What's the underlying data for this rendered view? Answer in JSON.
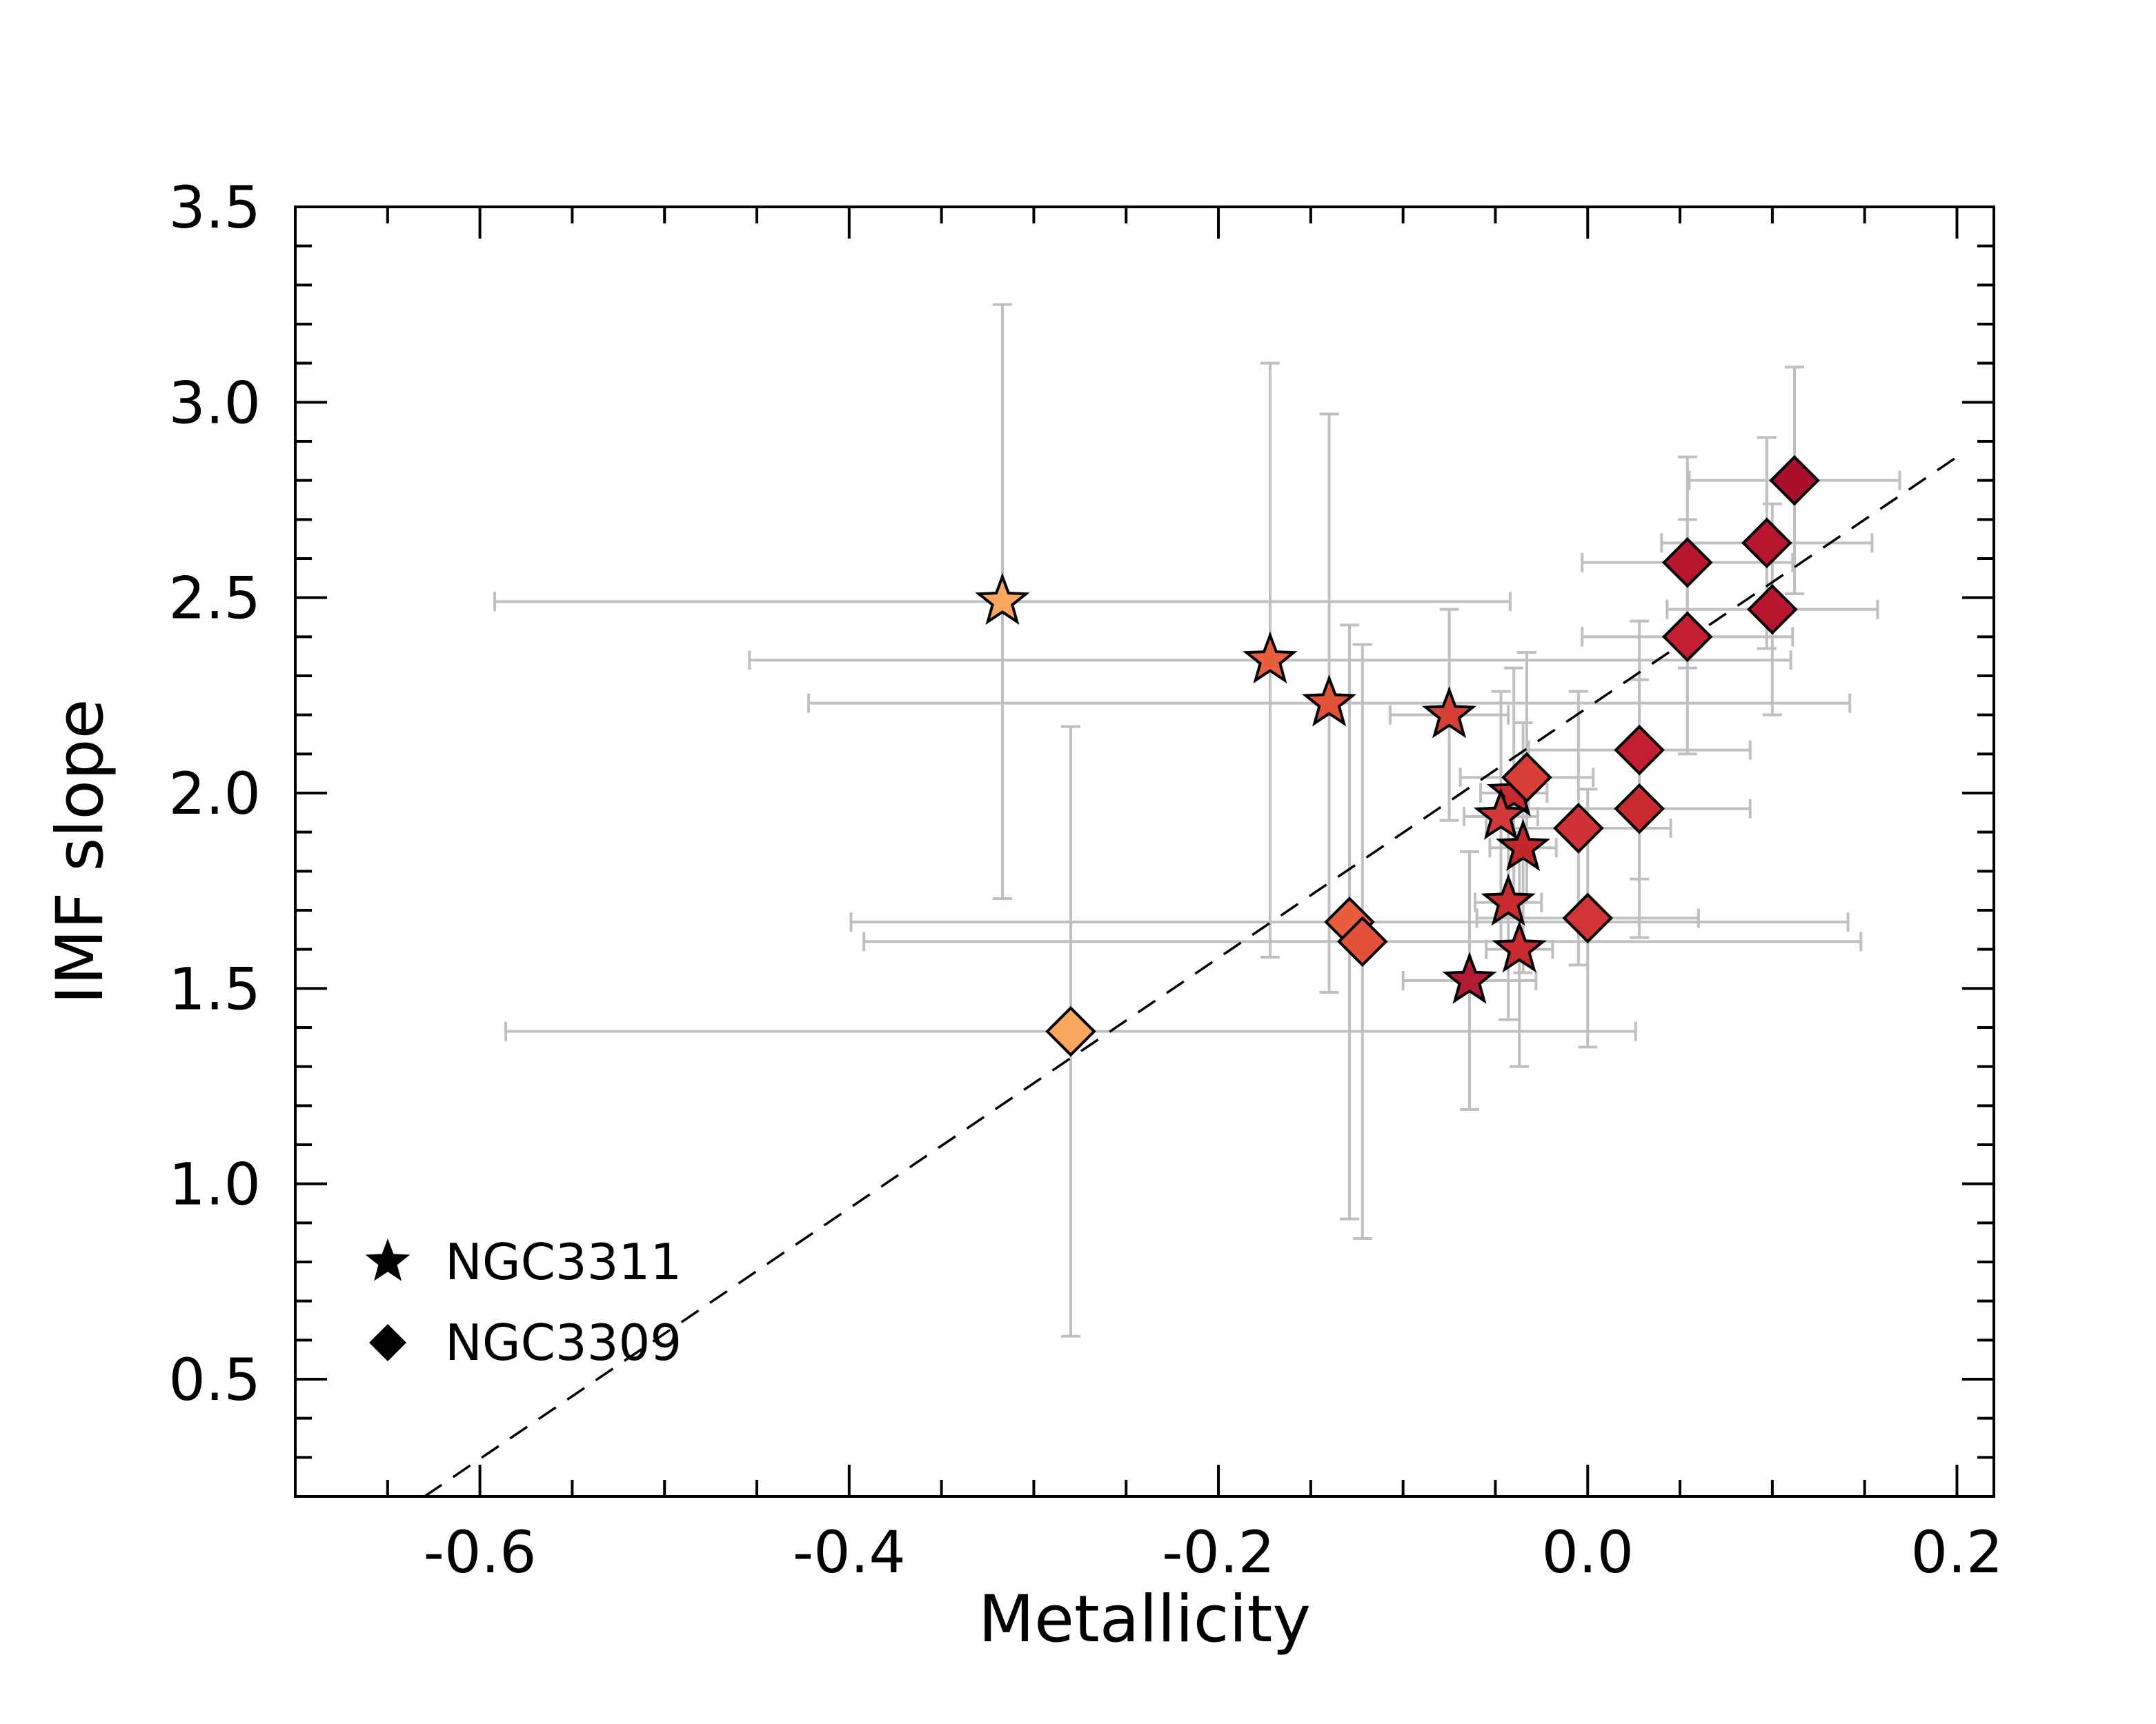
{
  "chart_data": {
    "type": "scatter",
    "title": "",
    "xlabel": "Metallicity",
    "ylabel": "IMF slope",
    "xlim": [
      -0.7,
      0.22
    ],
    "ylim": [
      0.2,
      3.5
    ],
    "xticks": [
      -0.6,
      -0.4,
      -0.2,
      0.0,
      0.2
    ],
    "xtick_labels": [
      "-0.6",
      "-0.4",
      "-0.2",
      "0.0",
      "0.2"
    ],
    "yticks": [
      0.5,
      1.0,
      1.5,
      2.0,
      2.5,
      3.0,
      3.5
    ],
    "ytick_labels": [
      "0.5",
      "1.0",
      "1.5",
      "2.0",
      "2.5",
      "3.0",
      "3.5"
    ],
    "legend_position": "bottom-left",
    "colors": {
      "errorbar": "#c0c0c0",
      "fit_line": "#000000",
      "marker_edge": "#000000"
    },
    "fit_line": {
      "x": [
        -0.63,
        0.2
      ],
      "y": [
        0.2,
        2.86
      ],
      "style": "dashed"
    },
    "series": [
      {
        "name": "NGC3311",
        "marker": "star",
        "points": [
          {
            "x": -0.317,
            "y": 2.49,
            "xerr": [
              0.275,
              0.275
            ],
            "yerr": [
              0.76,
              0.76
            ],
            "color": "#f7a65b"
          },
          {
            "x": -0.172,
            "y": 2.34,
            "xerr": [
              0.282,
              0.282
            ],
            "yerr": [
              0.76,
              0.76
            ],
            "color": "#e95d3c"
          },
          {
            "x": -0.14,
            "y": 2.23,
            "xerr": [
              0.282,
              0.282
            ],
            "yerr": [
              0.74,
              0.74
            ],
            "color": "#e4513a"
          },
          {
            "x": -0.075,
            "y": 2.2,
            "xerr": [
              0.032,
              0.032
            ],
            "yerr": [
              0.27,
              0.27
            ],
            "color": "#d73f36"
          },
          {
            "x": -0.04,
            "y": 2.0,
            "xerr": [
              0.018,
              0.018
            ],
            "yerr": [
              0.32,
              0.32
            ],
            "color": "#c92a30"
          },
          {
            "x": -0.047,
            "y": 1.94,
            "xerr": [
              0.02,
              0.02
            ],
            "yerr": [
              0.32,
              0.32
            ],
            "color": "#d2393b"
          },
          {
            "x": -0.035,
            "y": 1.86,
            "xerr": [
              0.018,
              0.018
            ],
            "yerr": [
              0.32,
              0.32
            ],
            "color": "#c1272d"
          },
          {
            "x": -0.043,
            "y": 1.72,
            "xerr": [
              0.018,
              0.018
            ],
            "yerr": [
              0.3,
              0.3
            ],
            "color": "#c92a30"
          },
          {
            "x": -0.037,
            "y": 1.6,
            "xerr": [
              0.018,
              0.018
            ],
            "yerr": [
              0.3,
              0.3
            ],
            "color": "#c92a30"
          },
          {
            "x": -0.064,
            "y": 1.52,
            "xerr": [
              0.036,
              0.036
            ],
            "yerr": [
              0.33,
              0.33
            ],
            "color": "#b31b34"
          }
        ]
      },
      {
        "name": "NGC3309",
        "marker": "diamond",
        "points": [
          {
            "x": -0.28,
            "y": 1.39,
            "xerr": [
              0.306,
              0.306
            ],
            "yerr": [
              0.78,
              0.78
            ],
            "color": "#f7a65b"
          },
          {
            "x": -0.129,
            "y": 1.67,
            "xerr": [
              0.27,
              0.27
            ],
            "yerr": [
              0.76,
              0.76
            ],
            "color": "#e95d3c"
          },
          {
            "x": -0.122,
            "y": 1.62,
            "xerr": [
              0.27,
              0.27
            ],
            "yerr": [
              0.76,
              0.76
            ],
            "color": "#e4513a"
          },
          {
            "x": -0.033,
            "y": 2.04,
            "xerr": [
              0.036,
              0.036
            ],
            "yerr": [
              0.32,
              0.32
            ],
            "color": "#d73f36"
          },
          {
            "x": -0.005,
            "y": 1.91,
            "xerr": [
              0.05,
              0.05
            ],
            "yerr": [
              0.35,
              0.35
            ],
            "color": "#cf3136"
          },
          {
            "x": 0.0,
            "y": 1.68,
            "xerr": [
              0.06,
              0.06
            ],
            "yerr": [
              0.33,
              0.33
            ],
            "color": "#d13436"
          },
          {
            "x": 0.028,
            "y": 1.96,
            "xerr": [
              0.06,
              0.06
            ],
            "yerr": [
              0.33,
              0.33
            ],
            "color": "#c92a30"
          },
          {
            "x": 0.028,
            "y": 2.11,
            "xerr": [
              0.06,
              0.06
            ],
            "yerr": [
              0.33,
              0.33
            ],
            "color": "#c41f30"
          },
          {
            "x": 0.054,
            "y": 2.4,
            "xerr": [
              0.057,
              0.057
            ],
            "yerr": [
              0.3,
              0.3
            ],
            "color": "#c41f30"
          },
          {
            "x": 0.054,
            "y": 2.59,
            "xerr": [
              0.057,
              0.057
            ],
            "yerr": [
              0.27,
              0.27
            ],
            "color": "#b8152e"
          },
          {
            "x": 0.1,
            "y": 2.47,
            "xerr": [
              0.057,
              0.057
            ],
            "yerr": [
              0.27,
              0.27
            ],
            "color": "#b8152e"
          },
          {
            "x": 0.097,
            "y": 2.64,
            "xerr": [
              0.057,
              0.057
            ],
            "yerr": [
              0.27,
              0.27
            ],
            "color": "#b8152e"
          },
          {
            "x": 0.112,
            "y": 2.8,
            "xerr": [
              0.057,
              0.057
            ],
            "yerr": [
              0.29,
              0.29
            ],
            "color": "#aa0f2a"
          }
        ]
      }
    ]
  }
}
